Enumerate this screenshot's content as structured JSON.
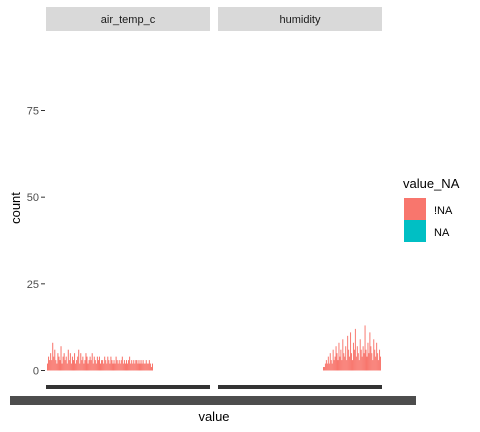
{
  "chart_data": {
    "type": "bar",
    "chart_kind": "faceted histogram",
    "xlabel": "value",
    "ylabel": "count",
    "ylim": [
      0,
      90
    ],
    "y_ticks": [
      0,
      25,
      50,
      75
    ],
    "grid": false,
    "legend_position": "right",
    "legend": {
      "title": "value_NA",
      "entries": [
        {
          "label": "!NA",
          "color": "#F8766D"
        },
        {
          "label": "NA",
          "color": "#00BFC4"
        }
      ]
    },
    "facets": [
      {
        "name": "air_temp_c",
        "series": "!NA",
        "counts": [
          2,
          4,
          3,
          5,
          3,
          8,
          4,
          6,
          3,
          2,
          5,
          4,
          3,
          7,
          2,
          4,
          5,
          3,
          4,
          2,
          6,
          3,
          5,
          2,
          4,
          3,
          5,
          2,
          3,
          4,
          6,
          2,
          5,
          3,
          4,
          2,
          3,
          5,
          4,
          2,
          3,
          4,
          3,
          5,
          2,
          4,
          3,
          2,
          4,
          3,
          4,
          2,
          3,
          3,
          2,
          4,
          3,
          2,
          4,
          3,
          2,
          4,
          3,
          2,
          3,
          2,
          4,
          3,
          2,
          3,
          2,
          3,
          4,
          2,
          3,
          2,
          3,
          2,
          3,
          4,
          2,
          3,
          2,
          3,
          2,
          3,
          3,
          2,
          3,
          2,
          3,
          2,
          3,
          2,
          2,
          3,
          2,
          2,
          3,
          2,
          1,
          2
        ]
      },
      {
        "name": "humidity",
        "series": "!NA",
        "counts": [
          1,
          1,
          2,
          3,
          2,
          4,
          2,
          5,
          3,
          2,
          6,
          3,
          4,
          7,
          5,
          3,
          8,
          4,
          6,
          3,
          9,
          5,
          4,
          7,
          3,
          10,
          6,
          4,
          11,
          5,
          3,
          8,
          6,
          12,
          4,
          7,
          5,
          3,
          9,
          6,
          4,
          7,
          5,
          13,
          6,
          4,
          8,
          5,
          11,
          7,
          5,
          3,
          9,
          6,
          4,
          8,
          5,
          3,
          6,
          4
        ]
      }
    ]
  }
}
